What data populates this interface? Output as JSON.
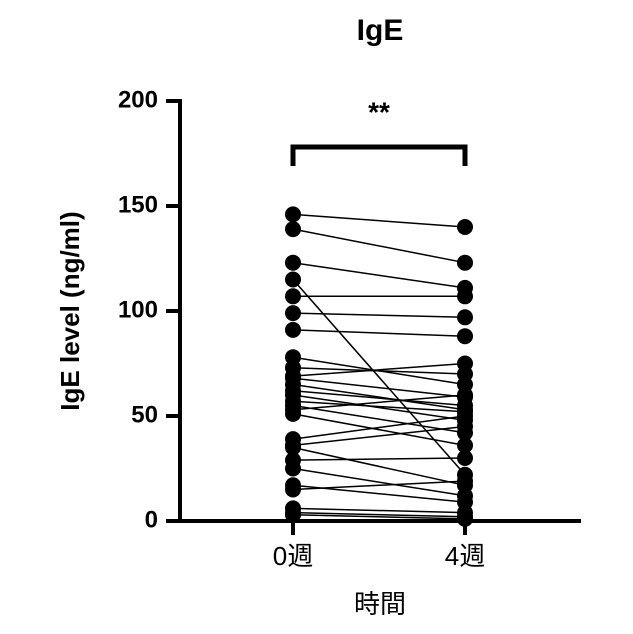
{
  "chart_data": {
    "type": "paired",
    "title": "IgE",
    "y_label": "IgE level (ng/ml)",
    "x_label": "時間",
    "annotation": "**",
    "categories": [
      "0週",
      "4週"
    ],
    "color": "#000000",
    "ylim": [
      0,
      200
    ],
    "yticks": [
      0,
      50,
      100,
      150,
      200
    ],
    "series": [
      {
        "values": [
          146,
          140
        ]
      },
      {
        "values": [
          139,
          123
        ]
      },
      {
        "values": [
          123,
          111
        ]
      },
      {
        "values": [
          115,
          22
        ]
      },
      {
        "values": [
          107,
          107
        ]
      },
      {
        "values": [
          99,
          97
        ]
      },
      {
        "values": [
          91,
          88
        ]
      },
      {
        "values": [
          78,
          65
        ]
      },
      {
        "values": [
          73,
          70
        ]
      },
      {
        "values": [
          69,
          75
        ]
      },
      {
        "values": [
          68,
          59
        ]
      },
      {
        "values": [
          65,
          53
        ]
      },
      {
        "values": [
          62,
          55
        ]
      },
      {
        "values": [
          60,
          48
        ]
      },
      {
        "values": [
          57,
          52
        ]
      },
      {
        "values": [
          55,
          42
        ]
      },
      {
        "values": [
          53,
          60
        ]
      },
      {
        "values": [
          51,
          36
        ]
      },
      {
        "values": [
          39,
          50
        ]
      },
      {
        "values": [
          36,
          45
        ]
      },
      {
        "values": [
          35,
          17
        ]
      },
      {
        "values": [
          29,
          30
        ]
      },
      {
        "values": [
          25,
          12
        ]
      },
      {
        "values": [
          17,
          9
        ]
      },
      {
        "values": [
          15,
          19
        ]
      },
      {
        "values": [
          6,
          4
        ]
      },
      {
        "values": [
          3,
          1
        ]
      },
      {
        "values": [
          4,
          2
        ]
      }
    ]
  }
}
